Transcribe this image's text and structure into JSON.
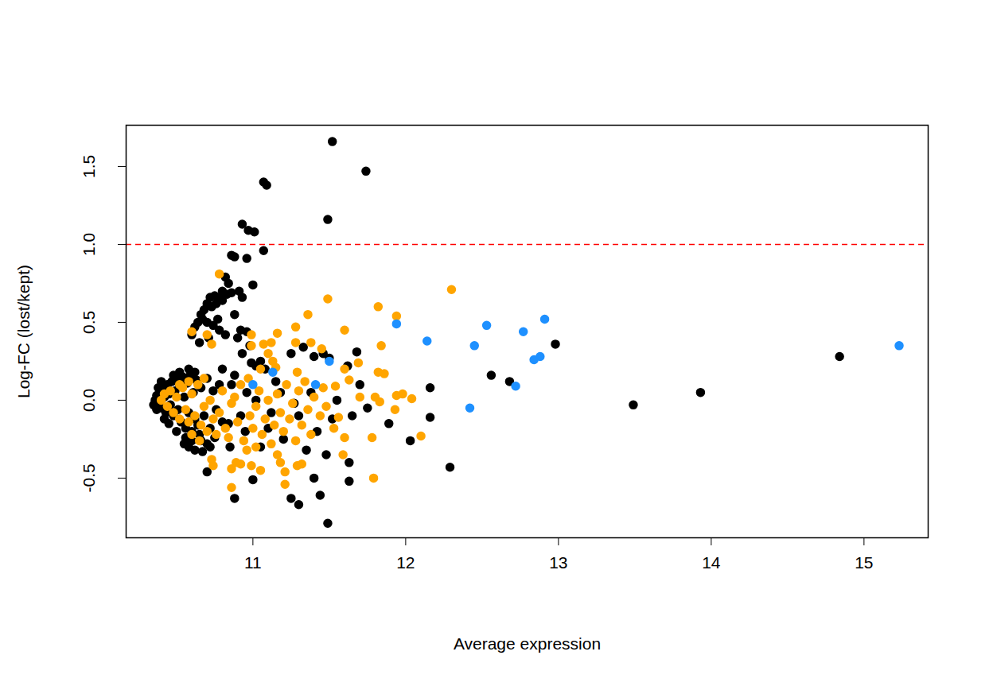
{
  "chart_data": {
    "type": "scatter",
    "xlabel": "Average expression",
    "ylabel": "Log-FC (lost/kept)",
    "xlim": [
      10.17,
      15.42
    ],
    "ylim": [
      -0.883,
      1.765
    ],
    "xticks": [
      11,
      12,
      13,
      14,
      15
    ],
    "yticks": [
      -0.5,
      {
        "value": 0,
        "label": "0.0"
      },
      0.5,
      {
        "value": 1,
        "label": "1.0"
      },
      1.5
    ],
    "marker": "circle",
    "reference_line": {
      "y": 1,
      "color": "#FF0000",
      "line_style": "dashed"
    },
    "series": [
      {
        "color": "#000000",
        "x": [
          11.52,
          11.74,
          11.07,
          11.09,
          11.49,
          10.93,
          10.97,
          11.01,
          11.07,
          10.86,
          10.88,
          10.96,
          11.0,
          10.82,
          10.84,
          10.8,
          10.78,
          10.75,
          10.72,
          10.7,
          10.73,
          10.76,
          10.8,
          10.83,
          10.86,
          10.91,
          10.93,
          10.88,
          10.68,
          10.66,
          10.64,
          10.62,
          10.6,
          10.67,
          10.7,
          10.74,
          10.77,
          10.71,
          10.65,
          10.78,
          10.82,
          10.92,
          10.96,
          10.9,
          10.93,
          10.98,
          11.02,
          10.99,
          11.05,
          11.08,
          10.88,
          10.8,
          10.86,
          11.46,
          11.5,
          11.68,
          11.4,
          11.33,
          11.25,
          11.15,
          12.98,
          12.56,
          12.68,
          14.84,
          13.93,
          13.49,
          12.16,
          12.16,
          12.03,
          11.89,
          12.29,
          11.62,
          11.7,
          11.75,
          11.65,
          11.55,
          11.49,
          11.3,
          11.25,
          11.44,
          10.88,
          11.4,
          11.63,
          11.63,
          11.0,
          10.67,
          10.7,
          10.62,
          10.58,
          10.55,
          10.6,
          10.65,
          10.72,
          10.75,
          10.85,
          10.95,
          11.05,
          11.1,
          11.2,
          11.35,
          11.3,
          11.42,
          11.48,
          11.52,
          11.38,
          11.27,
          11.18,
          11.12,
          11.02,
          10.96,
          10.92,
          10.84,
          10.36,
          10.37,
          10.38,
          10.39,
          10.4,
          10.41,
          10.42,
          10.43,
          10.44,
          10.45,
          10.46,
          10.47,
          10.48,
          10.49,
          10.5,
          10.51,
          10.52,
          10.53,
          10.54,
          10.55,
          10.56,
          10.57,
          10.58,
          10.59,
          10.6,
          10.61,
          10.62,
          10.63,
          10.64,
          10.66,
          10.68,
          10.7,
          10.72,
          10.74,
          10.76,
          10.78,
          10.8,
          10.38,
          10.4,
          10.42,
          10.45,
          10.48,
          10.52,
          10.56,
          10.5,
          10.58,
          10.62,
          10.66,
          10.7,
          10.55,
          10.35,
          10.37
        ],
        "y": [
          1.66,
          1.47,
          1.4,
          1.38,
          1.16,
          1.13,
          1.09,
          1.08,
          0.96,
          0.93,
          0.92,
          0.91,
          0.74,
          0.79,
          0.75,
          0.7,
          0.66,
          0.67,
          0.66,
          0.62,
          0.6,
          0.62,
          0.64,
          0.68,
          0.69,
          0.7,
          0.66,
          0.55,
          0.58,
          0.55,
          0.5,
          0.47,
          0.42,
          0.52,
          0.5,
          0.48,
          0.52,
          0.4,
          0.37,
          0.45,
          0.42,
          0.45,
          0.44,
          0.4,
          0.3,
          0.35,
          0.22,
          0.24,
          0.25,
          0.2,
          0.16,
          0.2,
          0.1,
          0.3,
          0.27,
          0.31,
          0.28,
          0.34,
          0.3,
          0.12,
          0.36,
          0.16,
          0.12,
          0.28,
          0.05,
          -0.03,
          0.08,
          -0.11,
          -0.26,
          -0.15,
          -0.43,
          0.22,
          0.1,
          -0.05,
          -0.1,
          0.0,
          -0.79,
          -0.67,
          -0.63,
          -0.61,
          -0.63,
          -0.5,
          -0.52,
          -0.4,
          -0.51,
          -0.33,
          -0.46,
          -0.32,
          -0.3,
          -0.28,
          -0.26,
          -0.22,
          -0.3,
          -0.24,
          -0.3,
          -0.2,
          -0.3,
          -0.18,
          -0.25,
          -0.32,
          -0.1,
          -0.2,
          -0.35,
          -0.12,
          0.05,
          -0.02,
          0.05,
          -0.08,
          0.0,
          0.05,
          -0.1,
          -0.15,
          0.0,
          0.03,
          -0.02,
          0.05,
          -0.05,
          0.08,
          0.02,
          -0.08,
          0.1,
          0.04,
          -0.03,
          0.12,
          -0.1,
          0.06,
          0.14,
          -0.06,
          0.09,
          -0.14,
          0.15,
          0.02,
          -0.18,
          0.11,
          -0.08,
          0.16,
          -0.2,
          0.05,
          -0.12,
          0.13,
          -0.16,
          0.08,
          -0.1,
          0.14,
          -0.18,
          0.06,
          -0.06,
          0.1,
          -0.14,
          0.08,
          0.12,
          -0.12,
          -0.15,
          0.16,
          0.18,
          -0.24,
          -0.2,
          0.2,
          0.18,
          -0.26,
          -0.28,
          0.12,
          -0.03,
          -0.06
        ]
      },
      {
        "color": "#FFA500",
        "x": [
          12.3,
          11.49,
          11.82,
          11.94,
          10.78,
          10.6,
          10.7,
          10.73,
          11.6,
          11.36,
          11.28,
          11.16,
          11.38,
          11.28,
          11.45,
          11.84,
          11.69,
          10.99,
          11.07,
          11.12,
          10.99,
          11.13,
          11.15,
          11.29,
          11.6,
          11.63,
          11.54,
          11.7,
          11.8,
          11.86,
          11.82,
          11.94,
          11.98,
          12.04,
          11.93,
          11.83,
          12.1,
          11.79,
          11.78,
          11.6,
          11.59,
          11.56,
          11.53,
          11.21,
          11.21,
          11.18,
          11.16,
          11.29,
          11.32,
          10.92,
          10.86,
          10.86,
          10.99,
          10.89,
          11.05,
          10.73,
          10.74,
          10.4,
          10.42,
          10.44,
          10.46,
          10.48,
          10.5,
          10.52,
          10.54,
          10.56,
          10.58,
          10.6,
          10.62,
          10.64,
          10.66,
          10.68,
          10.7,
          10.72,
          10.74,
          10.76,
          10.78,
          10.8,
          10.82,
          10.84,
          10.86,
          10.88,
          10.9,
          10.94,
          10.98,
          11.0,
          11.02,
          11.04,
          11.06,
          11.08,
          11.1,
          11.12,
          11.14,
          11.16,
          11.18,
          11.2,
          11.22,
          11.24,
          11.26,
          11.28,
          11.3,
          11.32,
          11.34,
          11.36,
          11.38,
          11.4,
          11.44,
          11.46,
          11.48,
          10.65,
          10.68,
          10.58,
          10.52,
          10.6,
          10.92,
          10.97,
          11.05,
          11.1,
          11.02,
          10.96
        ],
        "y": [
          0.71,
          0.65,
          0.6,
          0.54,
          0.81,
          0.44,
          0.42,
          0.36,
          0.45,
          0.55,
          0.47,
          0.43,
          0.37,
          0.37,
          0.33,
          0.35,
          0.24,
          0.42,
          0.36,
          0.37,
          0.35,
          0.25,
          0.21,
          0.18,
          0.2,
          0.13,
          0.09,
          0.02,
          0.02,
          0.17,
          0.18,
          0.03,
          0.04,
          0.01,
          -0.06,
          -0.01,
          -0.23,
          -0.5,
          -0.24,
          -0.24,
          -0.35,
          -0.11,
          -0.18,
          -0.46,
          -0.54,
          -0.4,
          -0.35,
          -0.42,
          -0.41,
          -0.41,
          -0.56,
          -0.44,
          -0.42,
          -0.4,
          -0.45,
          -0.38,
          -0.42,
          0.0,
          0.04,
          -0.04,
          0.06,
          -0.08,
          0.02,
          -0.12,
          0.08,
          -0.06,
          -0.14,
          0.04,
          -0.1,
          0.1,
          -0.16,
          -0.04,
          -0.2,
          0.0,
          -0.12,
          -0.22,
          -0.08,
          0.06,
          -0.18,
          -0.24,
          -0.02,
          0.02,
          -0.14,
          -0.26,
          -0.1,
          -0.18,
          -0.04,
          0.06,
          -0.22,
          -0.12,
          0.0,
          -0.28,
          -0.16,
          0.04,
          -0.08,
          -0.2,
          0.1,
          -0.12,
          -0.02,
          -0.26,
          0.06,
          -0.16,
          0.12,
          -0.06,
          -0.22,
          0.02,
          -0.1,
          0.08,
          -0.04,
          -0.26,
          0.14,
          0.12,
          0.1,
          -0.22,
          0.1,
          0.14,
          0.2,
          0.3,
          -0.3,
          -0.32
        ]
      },
      {
        "color": "#1E90FF",
        "x": [
          15.23,
          11.94,
          12.14,
          12.53,
          12.45,
          12.77,
          12.91,
          12.88,
          12.84,
          12.72,
          12.42,
          11.5,
          11.41,
          11.0,
          11.13
        ],
        "y": [
          0.35,
          0.49,
          0.38,
          0.48,
          0.35,
          0.44,
          0.52,
          0.28,
          0.26,
          0.09,
          -0.05,
          0.25,
          0.1,
          0.1,
          0.18
        ]
      }
    ]
  }
}
